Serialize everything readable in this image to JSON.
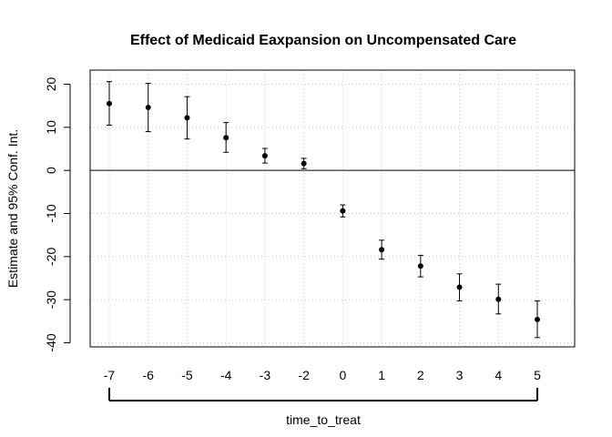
{
  "chart_data": {
    "type": "scatter",
    "title": "Effect of Medicaid Eaxpansion on Uncompensated Care",
    "xlabel": "time_to_treat",
    "ylabel": "Estimate and 95% Conf. Int.",
    "x_tick_labels": [
      "-7",
      "-6",
      "-5",
      "-4",
      "-3",
      "-2",
      "0",
      "1",
      "2",
      "3",
      "4",
      "5"
    ],
    "y_ticks": [
      20,
      10,
      0,
      -10,
      -20,
      -30,
      -40
    ],
    "ylim": [
      -41,
      24
    ],
    "reference_line_y": 0,
    "grid": true,
    "grid_style": "dotted",
    "series": [
      {
        "x": [
          "-7",
          "-6",
          "-5",
          "-4",
          "-3",
          "-2",
          "0",
          "1",
          "2",
          "3",
          "4",
          "5"
        ],
        "estimate": [
          15.5,
          14.6,
          12.2,
          7.6,
          3.4,
          1.6,
          -9.4,
          -18.4,
          -22.2,
          -27.1,
          -29.9,
          -34.6
        ],
        "ci_lower": [
          10.5,
          9.0,
          7.3,
          4.2,
          1.7,
          0.4,
          -10.8,
          -20.6,
          -24.7,
          -30.3,
          -33.3,
          -38.8
        ],
        "ci_upper": [
          20.6,
          20.2,
          17.1,
          11.1,
          5.1,
          2.8,
          -8.0,
          -16.2,
          -19.7,
          -24.0,
          -26.4,
          -30.3
        ]
      }
    ],
    "colors": {
      "points": "#000000",
      "grid": "#c8c8c8",
      "axis": "#000000"
    }
  }
}
